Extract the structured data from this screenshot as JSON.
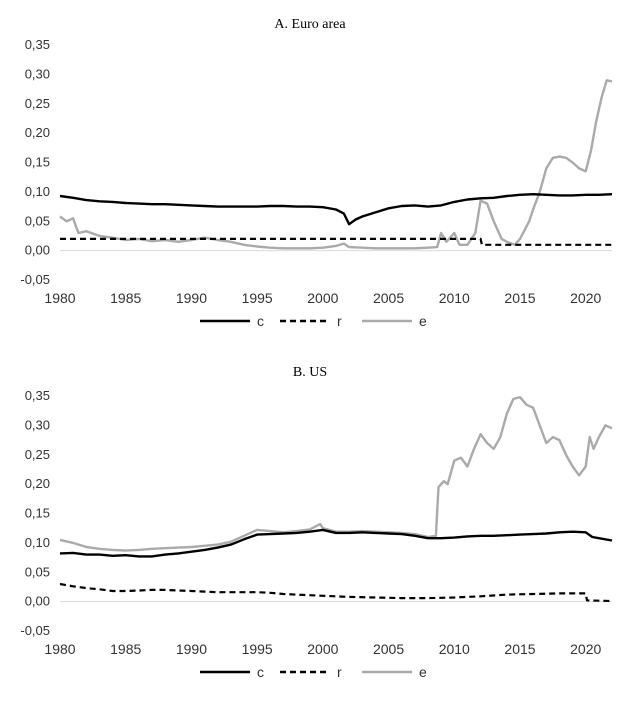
{
  "chart_data": [
    {
      "type": "line",
      "title": "A.  Euro area",
      "xlim": [
        1980,
        2022
      ],
      "ylim": [
        -0.05,
        0.35
      ],
      "yticks": [
        "-0,05",
        "0,00",
        "0,05",
        "0,10",
        "0,15",
        "0,20",
        "0,25",
        "0,30",
        "0,35"
      ],
      "xticks": [
        "1980",
        "1985",
        "1990",
        "1995",
        "2000",
        "2005",
        "2010",
        "2015",
        "2020"
      ],
      "grid": false,
      "legend_position": "bottom",
      "series": [
        {
          "name": "c",
          "color": "#000000",
          "dash": "solid",
          "points": [
            [
              1980,
              0.093
            ],
            [
              1981,
              0.09
            ],
            [
              1982,
              0.086
            ],
            [
              1983,
              0.084
            ],
            [
              1984,
              0.083
            ],
            [
              1985,
              0.081
            ],
            [
              1986,
              0.08
            ],
            [
              1987,
              0.079
            ],
            [
              1988,
              0.079
            ],
            [
              1989,
              0.078
            ],
            [
              1990,
              0.077
            ],
            [
              1991,
              0.076
            ],
            [
              1992,
              0.075
            ],
            [
              1993,
              0.075
            ],
            [
              1994,
              0.075
            ],
            [
              1995,
              0.075
            ],
            [
              1996,
              0.076
            ],
            [
              1997,
              0.076
            ],
            [
              1998,
              0.075
            ],
            [
              1999,
              0.075
            ],
            [
              2000,
              0.074
            ],
            [
              2001,
              0.07
            ],
            [
              2001.6,
              0.063
            ],
            [
              2002,
              0.045
            ],
            [
              2002.5,
              0.053
            ],
            [
              2003,
              0.058
            ],
            [
              2004,
              0.065
            ],
            [
              2005,
              0.072
            ],
            [
              2006,
              0.076
            ],
            [
              2007,
              0.077
            ],
            [
              2008,
              0.075
            ],
            [
              2009,
              0.077
            ],
            [
              2010,
              0.083
            ],
            [
              2011,
              0.087
            ],
            [
              2012,
              0.089
            ],
            [
              2013,
              0.09
            ],
            [
              2014,
              0.093
            ],
            [
              2015,
              0.095
            ],
            [
              2016,
              0.096
            ],
            [
              2017,
              0.095
            ],
            [
              2018,
              0.094
            ],
            [
              2019,
              0.094
            ],
            [
              2020,
              0.095
            ],
            [
              2021,
              0.095
            ],
            [
              2022,
              0.096
            ]
          ]
        },
        {
          "name": "r",
          "color": "#000000",
          "dash": "dashed",
          "points": [
            [
              1980,
              0.02
            ],
            [
              1990,
              0.02
            ],
            [
              2000,
              0.02
            ],
            [
              2010,
              0.02
            ],
            [
              2012,
              0.02
            ],
            [
              2012.1,
              0.01
            ],
            [
              2022,
              0.01
            ]
          ]
        },
        {
          "name": "e",
          "color": "#aaaaaa",
          "dash": "solid",
          "points": [
            [
              1980,
              0.058
            ],
            [
              1980.5,
              0.05
            ],
            [
              1981,
              0.055
            ],
            [
              1981.4,
              0.03
            ],
            [
              1982,
              0.033
            ],
            [
              1983,
              0.025
            ],
            [
              1984,
              0.022
            ],
            [
              1985,
              0.018
            ],
            [
              1986,
              0.02
            ],
            [
              1987,
              0.016
            ],
            [
              1988,
              0.018
            ],
            [
              1989,
              0.015
            ],
            [
              1990,
              0.018
            ],
            [
              1991,
              0.022
            ],
            [
              1992,
              0.018
            ],
            [
              1993,
              0.015
            ],
            [
              1994,
              0.01
            ],
            [
              1995,
              0.007
            ],
            [
              1996,
              0.005
            ],
            [
              1997,
              0.004
            ],
            [
              1998,
              0.004
            ],
            [
              1999,
              0.004
            ],
            [
              2000,
              0.005
            ],
            [
              2001,
              0.008
            ],
            [
              2001.6,
              0.012
            ],
            [
              2002,
              0.006
            ],
            [
              2003,
              0.005
            ],
            [
              2004,
              0.004
            ],
            [
              2005,
              0.004
            ],
            [
              2006,
              0.004
            ],
            [
              2007,
              0.004
            ],
            [
              2008,
              0.005
            ],
            [
              2008.7,
              0.006
            ],
            [
              2009,
              0.03
            ],
            [
              2009.4,
              0.015
            ],
            [
              2010,
              0.03
            ],
            [
              2010.4,
              0.01
            ],
            [
              2011,
              0.01
            ],
            [
              2011.6,
              0.03
            ],
            [
              2012,
              0.085
            ],
            [
              2012.5,
              0.08
            ],
            [
              2013,
              0.05
            ],
            [
              2013.6,
              0.02
            ],
            [
              2014,
              0.015
            ],
            [
              2014.6,
              0.01
            ],
            [
              2015,
              0.02
            ],
            [
              2015.7,
              0.05
            ],
            [
              2016,
              0.07
            ],
            [
              2016.5,
              0.1
            ],
            [
              2017,
              0.14
            ],
            [
              2017.5,
              0.158
            ],
            [
              2018,
              0.16
            ],
            [
              2018.5,
              0.158
            ],
            [
              2019,
              0.15
            ],
            [
              2019.5,
              0.14
            ],
            [
              2020,
              0.135
            ],
            [
              2020.4,
              0.17
            ],
            [
              2020.8,
              0.22
            ],
            [
              2021.2,
              0.26
            ],
            [
              2021.6,
              0.29
            ],
            [
              2022,
              0.288
            ]
          ]
        }
      ]
    },
    {
      "type": "line",
      "title": "B. US",
      "xlim": [
        1980,
        2022
      ],
      "ylim": [
        -0.05,
        0.35
      ],
      "yticks": [
        "-0,05",
        "0,00",
        "0,05",
        "0,10",
        "0,15",
        "0,20",
        "0,25",
        "0,30",
        "0,35"
      ],
      "xticks": [
        "1980",
        "1985",
        "1990",
        "1995",
        "2000",
        "2005",
        "2010",
        "2015",
        "2020"
      ],
      "grid": false,
      "legend_position": "bottom",
      "series": [
        {
          "name": "c",
          "color": "#000000",
          "dash": "solid",
          "points": [
            [
              1980,
              0.082
            ],
            [
              1981,
              0.083
            ],
            [
              1982,
              0.08
            ],
            [
              1983,
              0.08
            ],
            [
              1984,
              0.078
            ],
            [
              1985,
              0.079
            ],
            [
              1986,
              0.077
            ],
            [
              1987,
              0.077
            ],
            [
              1988,
              0.08
            ],
            [
              1989,
              0.082
            ],
            [
              1990,
              0.085
            ],
            [
              1991,
              0.088
            ],
            [
              1992,
              0.092
            ],
            [
              1993,
              0.097
            ],
            [
              1994,
              0.106
            ],
            [
              1995,
              0.114
            ],
            [
              1996,
              0.115
            ],
            [
              1997,
              0.116
            ],
            [
              1998,
              0.117
            ],
            [
              1999,
              0.119
            ],
            [
              2000,
              0.122
            ],
            [
              2001,
              0.117
            ],
            [
              2002,
              0.117
            ],
            [
              2003,
              0.118
            ],
            [
              2004,
              0.117
            ],
            [
              2005,
              0.116
            ],
            [
              2006,
              0.115
            ],
            [
              2007,
              0.112
            ],
            [
              2008,
              0.108
            ],
            [
              2009,
              0.108
            ],
            [
              2010,
              0.109
            ],
            [
              2011,
              0.111
            ],
            [
              2012,
              0.112
            ],
            [
              2013,
              0.112
            ],
            [
              2014,
              0.113
            ],
            [
              2015,
              0.114
            ],
            [
              2016,
              0.115
            ],
            [
              2017,
              0.116
            ],
            [
              2018,
              0.118
            ],
            [
              2019,
              0.119
            ],
            [
              2020,
              0.118
            ],
            [
              2020.5,
              0.11
            ],
            [
              2021,
              0.108
            ],
            [
              2022,
              0.104
            ]
          ]
        },
        {
          "name": "r",
          "color": "#000000",
          "dash": "dashed",
          "points": [
            [
              1980,
              0.03
            ],
            [
              1981,
              0.026
            ],
            [
              1982,
              0.023
            ],
            [
              1983,
              0.021
            ],
            [
              1984,
              0.018
            ],
            [
              1985,
              0.018
            ],
            [
              1986,
              0.019
            ],
            [
              1987,
              0.02
            ],
            [
              1988,
              0.02
            ],
            [
              1989,
              0.019
            ],
            [
              1990,
              0.018
            ],
            [
              1991,
              0.017
            ],
            [
              1992,
              0.016
            ],
            [
              1993,
              0.016
            ],
            [
              1994,
              0.016
            ],
            [
              1995,
              0.016
            ],
            [
              1996,
              0.015
            ],
            [
              1997,
              0.013
            ],
            [
              1998,
              0.012
            ],
            [
              1999,
              0.011
            ],
            [
              2000,
              0.01
            ],
            [
              2002,
              0.008
            ],
            [
              2004,
              0.007
            ],
            [
              2006,
              0.006
            ],
            [
              2008,
              0.006
            ],
            [
              2010,
              0.007
            ],
            [
              2012,
              0.009
            ],
            [
              2014,
              0.012
            ],
            [
              2016,
              0.013
            ],
            [
              2018,
              0.014
            ],
            [
              2020,
              0.014
            ],
            [
              2020.1,
              0.002
            ],
            [
              2022,
              0.001
            ]
          ]
        },
        {
          "name": "e",
          "color": "#aaaaaa",
          "dash": "solid",
          "points": [
            [
              1980,
              0.105
            ],
            [
              1981,
              0.1
            ],
            [
              1982,
              0.093
            ],
            [
              1983,
              0.09
            ],
            [
              1984,
              0.088
            ],
            [
              1985,
              0.087
            ],
            [
              1986,
              0.088
            ],
            [
              1987,
              0.09
            ],
            [
              1988,
              0.091
            ],
            [
              1989,
              0.092
            ],
            [
              1990,
              0.093
            ],
            [
              1991,
              0.095
            ],
            [
              1992,
              0.097
            ],
            [
              1993,
              0.102
            ],
            [
              1994,
              0.112
            ],
            [
              1995,
              0.122
            ],
            [
              1996,
              0.12
            ],
            [
              1997,
              0.118
            ],
            [
              1998,
              0.12
            ],
            [
              1999,
              0.123
            ],
            [
              1999.8,
              0.132
            ],
            [
              2000,
              0.125
            ],
            [
              2001,
              0.119
            ],
            [
              2002,
              0.119
            ],
            [
              2003,
              0.12
            ],
            [
              2004,
              0.119
            ],
            [
              2005,
              0.118
            ],
            [
              2006,
              0.117
            ],
            [
              2007,
              0.115
            ],
            [
              2008,
              0.11
            ],
            [
              2008.6,
              0.112
            ],
            [
              2008.8,
              0.195
            ],
            [
              2009.2,
              0.205
            ],
            [
              2009.5,
              0.2
            ],
            [
              2010,
              0.24
            ],
            [
              2010.5,
              0.245
            ],
            [
              2011,
              0.23
            ],
            [
              2011.5,
              0.26
            ],
            [
              2012,
              0.285
            ],
            [
              2012.5,
              0.27
            ],
            [
              2013,
              0.26
            ],
            [
              2013.5,
              0.28
            ],
            [
              2014,
              0.32
            ],
            [
              2014.5,
              0.345
            ],
            [
              2015,
              0.348
            ],
            [
              2015.5,
              0.335
            ],
            [
              2016,
              0.33
            ],
            [
              2016.5,
              0.3
            ],
            [
              2017,
              0.27
            ],
            [
              2017.5,
              0.28
            ],
            [
              2018,
              0.275
            ],
            [
              2018.5,
              0.25
            ],
            [
              2019,
              0.23
            ],
            [
              2019.5,
              0.215
            ],
            [
              2020,
              0.23
            ],
            [
              2020.3,
              0.28
            ],
            [
              2020.6,
              0.26
            ],
            [
              2021,
              0.28
            ],
            [
              2021.5,
              0.3
            ],
            [
              2022,
              0.295
            ]
          ]
        }
      ]
    }
  ]
}
